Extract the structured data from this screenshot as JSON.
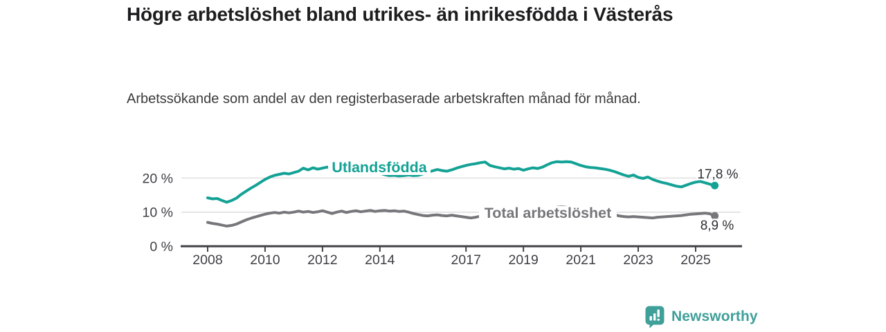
{
  "chart_data": {
    "type": "line",
    "title": "Högre arbetslöshet bland utrikes- än inrikesfödda i Västerås",
    "subtitle": "Arbetssökande som andel av den registerbaserade arbetskraften månad för månad.",
    "xlim": [
      2008,
      2025.67
    ],
    "ylim": [
      0,
      27
    ],
    "grid": "horizontal",
    "legend": "inline-labels",
    "x_ticks": [
      2008,
      2010,
      2012,
      2014,
      2017,
      2019,
      2021,
      2023,
      2025
    ],
    "y_ticks": [
      {
        "value": 0,
        "label": "0 %"
      },
      {
        "value": 10,
        "label": "10 %"
      },
      {
        "value": 20,
        "label": "20 %"
      }
    ],
    "series": [
      {
        "id": "utlandsfodda",
        "name": "Utlandsfödda",
        "color": "#13a295",
        "end_label": "17,8 %",
        "end_value": 17.8,
        "x_start": 2008,
        "x_step_months": 2,
        "values": [
          14.2,
          13.9,
          14.0,
          13.4,
          12.9,
          13.4,
          14.1,
          15.2,
          16.1,
          17.0,
          17.8,
          18.7,
          19.6,
          20.3,
          20.8,
          21.1,
          21.4,
          21.2,
          21.6,
          22.0,
          22.9,
          22.4,
          23.0,
          22.6,
          22.9,
          23.2,
          22.8,
          23.1,
          23.3,
          22.9,
          23.2,
          23.0,
          22.7,
          22.5,
          22.2,
          21.8,
          21.4,
          21.0,
          20.7,
          20.8,
          20.6,
          20.7,
          20.9,
          20.7,
          20.8,
          21.2,
          21.7,
          22.1,
          22.5,
          22.2,
          22.0,
          22.4,
          22.9,
          23.3,
          23.7,
          24.0,
          24.2,
          24.5,
          24.7,
          23.7,
          23.3,
          23.0,
          22.7,
          22.9,
          22.6,
          22.8,
          22.3,
          22.7,
          23.0,
          22.8,
          23.2,
          23.9,
          24.5,
          24.8,
          24.7,
          24.8,
          24.7,
          24.2,
          23.7,
          23.3,
          23.1,
          23.0,
          22.8,
          22.6,
          22.3,
          21.9,
          21.4,
          20.9,
          20.5,
          20.9,
          20.2,
          19.9,
          20.3,
          19.6,
          19.1,
          18.7,
          18.4,
          18.0,
          17.6,
          17.4,
          17.9,
          18.4,
          18.8,
          19.0,
          18.6,
          18.2,
          17.8
        ]
      },
      {
        "id": "total-arbetsloshet",
        "name": "Total arbetslöshet",
        "color": "#77777b",
        "end_label": "8,9 %",
        "end_value": 8.9,
        "x_start": 2008,
        "x_step_months": 2,
        "values": [
          7.0,
          6.7,
          6.5,
          6.2,
          5.9,
          6.1,
          6.5,
          7.1,
          7.7,
          8.2,
          8.6,
          9.0,
          9.4,
          9.7,
          9.9,
          9.7,
          10.0,
          9.8,
          10.0,
          10.3,
          10.0,
          10.2,
          9.9,
          10.1,
          10.4,
          10.0,
          9.6,
          10.0,
          10.3,
          9.9,
          10.2,
          10.4,
          10.1,
          10.3,
          10.5,
          10.2,
          10.4,
          10.5,
          10.3,
          10.4,
          10.2,
          10.3,
          10.0,
          9.6,
          9.3,
          9.0,
          8.9,
          9.1,
          9.2,
          9.0,
          8.9,
          9.1,
          8.9,
          8.7,
          8.5,
          8.3,
          8.5,
          8.8,
          9.0,
          8.9,
          8.8,
          8.6,
          8.4,
          8.3,
          8.5,
          8.7,
          8.9,
          9.0,
          9.2,
          9.4,
          9.7,
          10.2,
          11.0,
          11.4,
          11.5,
          11.4,
          11.2,
          11.1,
          11.2,
          11.1,
          11.3,
          11.0,
          10.5,
          10.0,
          9.6,
          9.2,
          8.9,
          8.7,
          8.6,
          8.7,
          8.6,
          8.5,
          8.4,
          8.3,
          8.5,
          8.6,
          8.7,
          8.8,
          8.9,
          9.0,
          9.2,
          9.4,
          9.5,
          9.6,
          9.7,
          9.5,
          8.9
        ]
      }
    ],
    "colors": {
      "axis": "#414147",
      "grid": "#d9d9d9",
      "tick_text": "#3f3f44",
      "value_text": "#2e2e33"
    }
  },
  "footer": {
    "brand": "Newsworthy",
    "logo_icon": "bar-chart-speech-bubble-icon",
    "brand_color": "#3f9f99"
  }
}
